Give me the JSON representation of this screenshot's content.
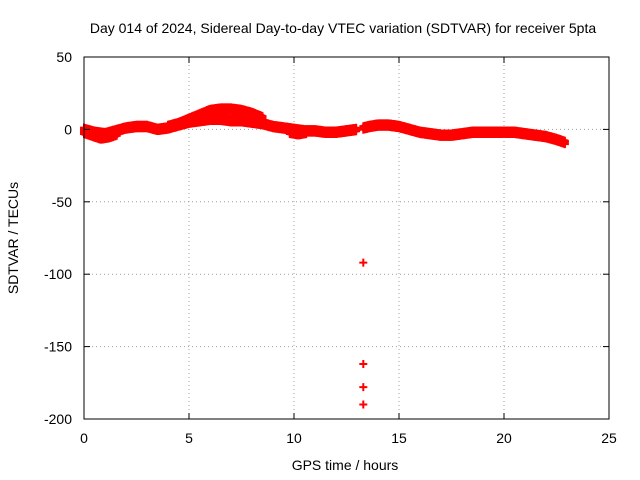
{
  "chart_data": {
    "type": "scatter",
    "title": "Day 014 of 2024, Sidereal Day-to-day VTEC variation (SDTVAR) for receiver 5pta",
    "xlabel": "GPS time / hours",
    "ylabel": "SDTVAR / TECUs",
    "xlim": [
      0,
      25
    ],
    "ylim": [
      -200,
      50
    ],
    "xticks": [
      "0",
      "5",
      "10",
      "15",
      "20",
      "25"
    ],
    "yticks": [
      "50",
      "0",
      "-50",
      "-100",
      "-150",
      "-200"
    ],
    "grid": true,
    "marker_color": "#ff0000",
    "series": [
      {
        "name": "SDTVAR",
        "main_track": {
          "x": [
            0.0,
            0.5,
            1.0,
            1.5,
            2.0,
            2.5,
            3.0,
            3.5,
            4.0,
            4.5,
            5.0,
            5.5,
            6.0,
            6.5,
            7.0,
            7.5,
            8.0,
            8.5,
            9.0,
            9.5,
            10.0,
            10.5,
            11.0,
            11.5,
            12.0,
            12.5,
            13.0,
            13.3,
            13.6,
            14.0,
            14.5,
            15.0,
            15.5,
            16.0,
            16.5,
            17.0,
            17.5,
            18.0,
            18.5,
            19.0,
            19.5,
            20.0,
            20.5,
            21.0,
            21.5,
            22.0,
            22.5,
            22.9
          ],
          "y": [
            0,
            -2,
            -3,
            -1,
            1,
            2,
            2,
            0,
            1,
            3,
            5,
            6,
            7,
            7,
            6,
            6,
            5,
            4,
            2,
            1,
            0,
            -1,
            -1,
            -2,
            -2,
            -1,
            0,
            1,
            2,
            3,
            3,
            2,
            0,
            -2,
            -3,
            -4,
            -4,
            -3,
            -2,
            -2,
            -2,
            -2,
            -2,
            -3,
            -4,
            -5,
            -7,
            -9
          ]
        },
        "upper_track": {
          "x": [
            4.0,
            4.5,
            5.0,
            5.5,
            6.0,
            6.5,
            7.0,
            7.5,
            8.0,
            8.5
          ],
          "y": [
            2,
            4,
            7,
            10,
            13,
            14,
            14,
            13,
            11,
            8
          ]
        },
        "lower_track": {
          "x": [
            0.0,
            0.4,
            0.8,
            1.2,
            1.6
          ],
          "y": [
            -2,
            -4,
            -6,
            -5,
            -3
          ]
        },
        "dip_track": {
          "x": [
            9.8,
            10.2,
            10.6
          ],
          "y": [
            -2,
            -3,
            -2
          ]
        },
        "outliers": {
          "x": [
            13.3,
            13.3,
            13.3,
            13.3
          ],
          "y": [
            -92,
            -162,
            -178,
            -190
          ]
        }
      }
    ]
  }
}
